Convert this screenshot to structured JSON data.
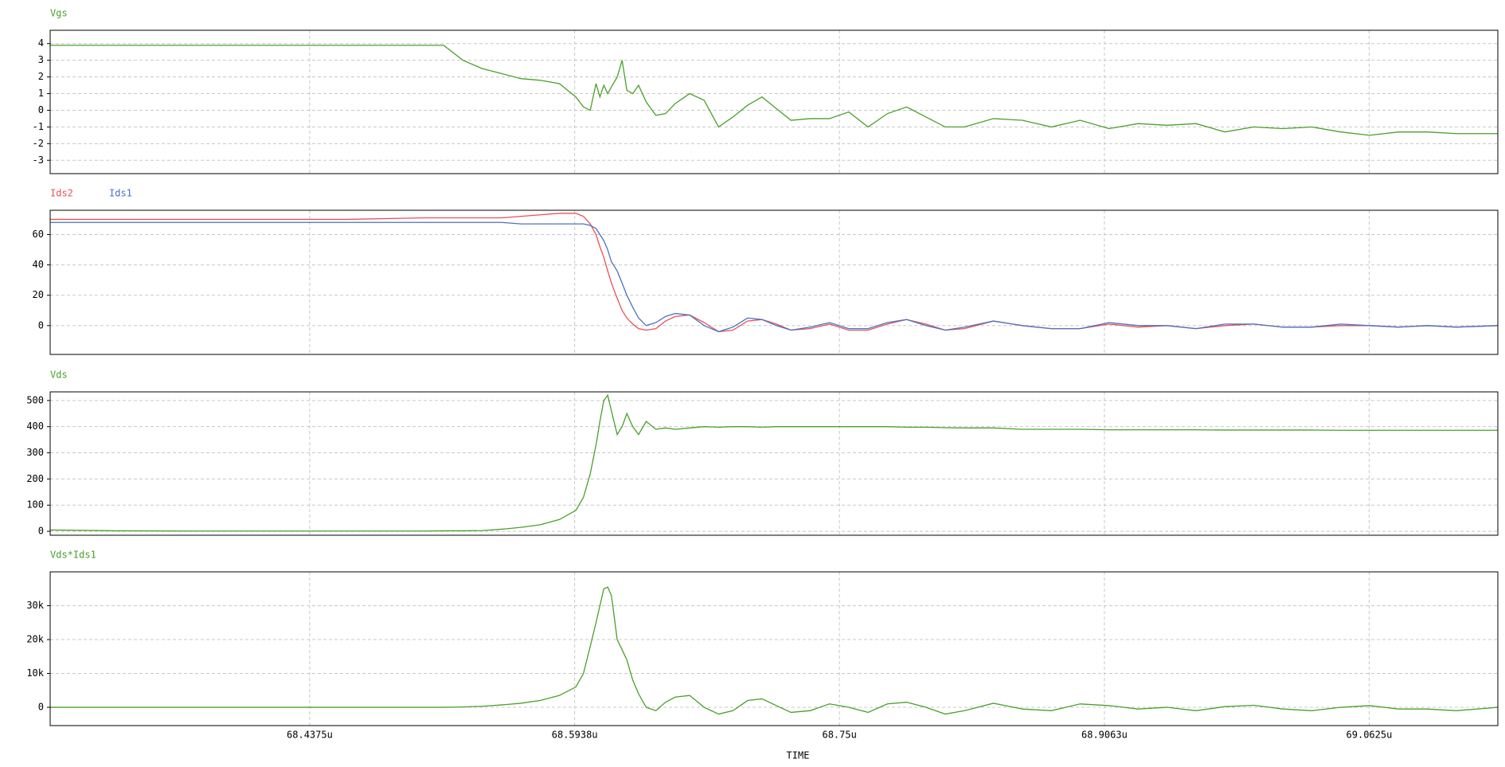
{
  "chart_data": [
    {
      "type": "line",
      "x": [
        68.2844,
        68.3231,
        68.3686,
        68.4141,
        68.4596,
        68.5052,
        68.5165,
        68.5279,
        68.5393,
        68.5507,
        68.5621,
        68.5734,
        68.5848,
        68.5945,
        68.599,
        68.603,
        68.6064,
        68.6087,
        68.611,
        68.6133,
        68.6155,
        68.6189,
        68.6218,
        68.6246,
        68.6281,
        68.6315,
        68.636,
        68.6417,
        68.6474,
        68.6531,
        68.6616,
        68.6702,
        68.6787,
        68.6872,
        68.6958,
        68.7043,
        68.7128,
        68.7214,
        68.7327,
        68.7441,
        68.7555,
        68.7669,
        68.7783,
        68.7896,
        68.801,
        68.8124,
        68.8238,
        68.8408,
        68.8579,
        68.875,
        68.892,
        68.9091,
        68.9262,
        68.9433,
        68.9603,
        68.9774,
        68.9945,
        69.0115,
        69.0286,
        69.0457,
        69.0627,
        69.0798,
        69.0969,
        69.1139,
        69.1384
      ],
      "xlim": [
        68.2844,
        69.1384
      ],
      "xticks": [
        68.4375,
        68.5938,
        68.75,
        68.9063,
        69.0625
      ],
      "ylim": [
        -3.8,
        4.8
      ],
      "yticks": [
        -3,
        -2,
        -1,
        0,
        1,
        2,
        3,
        4
      ],
      "grid": true,
      "series": [
        {
          "name": "Vgs",
          "color": "#4aa02a",
          "values": [
            3.9,
            3.9,
            3.9,
            3.9,
            3.9,
            3.9,
            3.9,
            3.0,
            2.5,
            2.2,
            1.9,
            1.8,
            1.6,
            0.8,
            0.2,
            0,
            1.6,
            0.8,
            1.5,
            1.0,
            1.4,
            2.0,
            3.0,
            1.2,
            1.0,
            1.5,
            0.5,
            -0.3,
            -0.2,
            0.4,
            1.0,
            0.6,
            -1.0,
            -0.4,
            0.3,
            0.8,
            0.1,
            -0.6,
            -0.5,
            -0.5,
            -0.1,
            -1.0,
            -0.2,
            0.2,
            -0.4,
            -1.0,
            -1.0,
            -0.5,
            -0.6,
            -1.0,
            -0.6,
            -1.1,
            -0.8,
            -0.9,
            -0.8,
            -1.3,
            -1.0,
            -1.1,
            -1.0,
            -1.3,
            -1.5,
            -1.3,
            -1.3,
            -1.4,
            -1.4
          ]
        }
      ]
    },
    {
      "type": "line",
      "x": [
        68.2844,
        68.3231,
        68.3686,
        68.4141,
        68.4596,
        68.5052,
        68.5165,
        68.5279,
        68.5393,
        68.5507,
        68.5621,
        68.5734,
        68.5848,
        68.5945,
        68.599,
        68.603,
        68.6064,
        68.6087,
        68.611,
        68.6133,
        68.6155,
        68.6189,
        68.6218,
        68.6246,
        68.6281,
        68.6315,
        68.636,
        68.6417,
        68.6474,
        68.6531,
        68.6616,
        68.6702,
        68.6787,
        68.6872,
        68.6958,
        68.7043,
        68.7128,
        68.7214,
        68.7327,
        68.7441,
        68.7555,
        68.7669,
        68.7783,
        68.7896,
        68.801,
        68.8124,
        68.8238,
        68.8408,
        68.8579,
        68.875,
        68.892,
        68.9091,
        68.9262,
        68.9433,
        68.9603,
        68.9774,
        68.9945,
        69.0115,
        69.0286,
        69.0457,
        69.0627,
        69.0798,
        69.0969,
        69.1139,
        69.1384
      ],
      "xlim": [
        68.2844,
        69.1384
      ],
      "xticks": [
        68.4375,
        68.5938,
        68.75,
        68.9063,
        69.0625
      ],
      "ylim": [
        -19,
        76
      ],
      "yticks": [
        0,
        20,
        40,
        60
      ],
      "grid": true,
      "series": [
        {
          "name": "Ids2",
          "color": "#e8505c",
          "values": [
            70,
            70,
            70,
            70,
            70,
            71,
            71,
            71,
            71,
            71,
            72,
            73,
            74,
            74,
            72,
            67,
            60,
            52,
            45,
            36,
            28,
            18,
            10,
            5,
            1,
            -2,
            -3,
            -2,
            3,
            6,
            7,
            2,
            -4,
            -3,
            3,
            4,
            1,
            -3,
            -2,
            1,
            -3,
            -3,
            1,
            4,
            1,
            -3,
            -2,
            3,
            0,
            -2,
            -2,
            1,
            -1,
            0,
            -2,
            0,
            1,
            -1,
            -1,
            0,
            0,
            -1,
            0,
            -1,
            0
          ]
        },
        {
          "name": "Ids1",
          "color": "#4a72c0",
          "values": [
            68,
            68,
            68,
            68,
            68,
            68,
            68,
            68,
            68,
            68,
            67,
            67,
            67,
            67,
            67,
            66,
            64,
            60,
            56,
            50,
            42,
            36,
            28,
            20,
            12,
            5,
            0,
            2,
            6,
            8,
            7,
            0,
            -4,
            -1,
            5,
            4,
            0,
            -3,
            -1,
            2,
            -2,
            -2,
            2,
            4,
            0,
            -3,
            -1,
            3,
            0,
            -2,
            -2,
            2,
            0,
            0,
            -2,
            1,
            1,
            -1,
            -1,
            1,
            0,
            -1,
            0,
            -1,
            0
          ]
        }
      ]
    },
    {
      "type": "line",
      "x": [
        68.2844,
        68.3231,
        68.3686,
        68.4141,
        68.4596,
        68.5052,
        68.5165,
        68.5279,
        68.5393,
        68.5507,
        68.5621,
        68.5734,
        68.5848,
        68.5945,
        68.599,
        68.603,
        68.6064,
        68.6087,
        68.611,
        68.6133,
        68.6155,
        68.6189,
        68.6218,
        68.6246,
        68.6281,
        68.6315,
        68.636,
        68.6417,
        68.6474,
        68.6531,
        68.6616,
        68.6702,
        68.6787,
        68.6872,
        68.6958,
        68.7043,
        68.7128,
        68.7214,
        68.7327,
        68.7441,
        68.7555,
        68.7669,
        68.7783,
        68.7896,
        68.801,
        68.8124,
        68.8238,
        68.8408,
        68.8579,
        68.875,
        68.892,
        68.9091,
        68.9262,
        68.9433,
        68.9603,
        68.9774,
        68.9945,
        69.0115,
        69.0286,
        69.0457,
        69.0627,
        69.0798,
        69.0969,
        69.1139,
        69.1384
      ],
      "xlim": [
        68.2844,
        69.1384
      ],
      "xticks": [
        68.4375,
        68.5938,
        68.75,
        68.9063,
        69.0625
      ],
      "ylim": [
        -15,
        533
      ],
      "yticks": [
        0,
        100,
        200,
        300,
        400,
        500
      ],
      "grid": true,
      "series": [
        {
          "name": "Vds",
          "color": "#4aa02a",
          "values": [
            5,
            2,
            1,
            1,
            1,
            1,
            2,
            2,
            3,
            8,
            15,
            25,
            45,
            80,
            130,
            220,
            330,
            420,
            500,
            520,
            460,
            370,
            400,
            450,
            400,
            370,
            420,
            390,
            395,
            390,
            395,
            400,
            398,
            400,
            400,
            398,
            400,
            400,
            400,
            400,
            400,
            400,
            400,
            398,
            398,
            396,
            395,
            395,
            390,
            390,
            390,
            388,
            388,
            388,
            388,
            387,
            387,
            387,
            387,
            386,
            386,
            386,
            386,
            386,
            386
          ]
        }
      ]
    },
    {
      "type": "line",
      "x": [
        68.2844,
        68.3231,
        68.3686,
        68.4141,
        68.4596,
        68.5052,
        68.5165,
        68.5279,
        68.5393,
        68.5507,
        68.5621,
        68.5734,
        68.5848,
        68.5945,
        68.599,
        68.603,
        68.6064,
        68.6087,
        68.611,
        68.6133,
        68.6155,
        68.6189,
        68.6218,
        68.6246,
        68.6281,
        68.6315,
        68.636,
        68.6417,
        68.6474,
        68.6531,
        68.6616,
        68.6702,
        68.6787,
        68.6872,
        68.6958,
        68.7043,
        68.7128,
        68.7214,
        68.7327,
        68.7441,
        68.7555,
        68.7669,
        68.7783,
        68.7896,
        68.801,
        68.8124,
        68.8238,
        68.8408,
        68.8579,
        68.875,
        68.892,
        68.9091,
        68.9262,
        68.9433,
        68.9603,
        68.9774,
        68.9945,
        69.0115,
        69.0286,
        69.0457,
        69.0627,
        69.0798,
        69.0969,
        69.1139,
        69.1384
      ],
      "xlim": [
        68.2844,
        69.1384
      ],
      "xticks": [
        {
          "value": 68.4375,
          "label": "68.4375u"
        },
        {
          "value": 68.5938,
          "label": "68.5938u"
        },
        {
          "value": 68.75,
          "label": "68.75u"
        },
        {
          "value": 68.9063,
          "label": "68.9063u"
        },
        {
          "value": 69.0625,
          "label": "69.0625u"
        }
      ],
      "xlabel": "TIME",
      "ylim": [
        -5400,
        40000
      ],
      "yticks": [
        0,
        {
          "value": 10000,
          "label": "10k"
        },
        {
          "value": 20000,
          "label": "20k"
        },
        {
          "value": 30000,
          "label": "30k"
        }
      ],
      "grid": true,
      "series": [
        {
          "name": "Vds*Ids1",
          "color": "#4aa02a",
          "values": [
            0,
            0,
            0,
            0,
            0,
            0,
            0,
            100,
            300,
            700,
            1200,
            2000,
            3500,
            6000,
            10000,
            18000,
            25000,
            30000,
            35000,
            35500,
            33000,
            20000,
            17000,
            14000,
            8000,
            4000,
            0,
            -1000,
            1500,
            3000,
            3500,
            0,
            -2000,
            -1000,
            2000,
            2500,
            500,
            -1500,
            -1000,
            1000,
            0,
            -1500,
            1000,
            1500,
            0,
            -2000,
            -1000,
            1200,
            -500,
            -1000,
            1000,
            500,
            -500,
            0,
            -1000,
            200,
            600,
            -500,
            -1000,
            0,
            500,
            -500,
            -500,
            -1000,
            0
          ]
        }
      ]
    }
  ]
}
